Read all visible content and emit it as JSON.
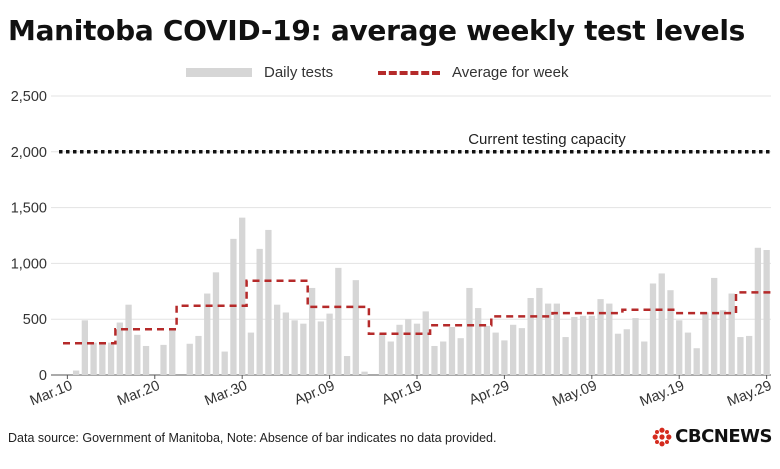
{
  "title": "Manitoba COVID-19: average weekly test levels",
  "legend": {
    "bars_label": "Daily tests",
    "line_label": "Average for week"
  },
  "footer": "Data source: Government of Manitoba,  Note: Absence of bar indicates no data provided.",
  "logo_text": "CBCNEWS",
  "colors": {
    "bar": "#d6d6d6",
    "avg_line": "#b52a2a",
    "capacity_line": "#111111",
    "grid": "#e3e3e3"
  },
  "chart_data": {
    "type": "bar",
    "title": "Manitoba COVID-19: average weekly test levels",
    "xlabel": "",
    "ylabel": "",
    "ylim": [
      0,
      2500
    ],
    "yticks": [
      0,
      500,
      1000,
      1500,
      2000,
      2500
    ],
    "ytick_labels": [
      "0",
      "500",
      "1,000",
      "1,500",
      "2,000",
      "2,500"
    ],
    "x_start": "2020-03-10",
    "x_end": "2020-05-29",
    "xtick_labels": [
      "Mar.10",
      "Mar.20",
      "Mar.30",
      "Apr.09",
      "Apr.19",
      "Apr.29",
      "May.09",
      "May.19",
      "May.29"
    ],
    "grid": true,
    "legend_position": "top",
    "series": [
      {
        "name": "Daily tests",
        "type": "bar",
        "dates": [
          "2020-03-10",
          "2020-03-11",
          "2020-03-12",
          "2020-03-13",
          "2020-03-14",
          "2020-03-15",
          "2020-03-16",
          "2020-03-17",
          "2020-03-18",
          "2020-03-19",
          "2020-03-20",
          "2020-03-21",
          "2020-03-22",
          "2020-03-23",
          "2020-03-24",
          "2020-03-25",
          "2020-03-26",
          "2020-03-27",
          "2020-03-28",
          "2020-03-29",
          "2020-03-30",
          "2020-03-31",
          "2020-04-01",
          "2020-04-02",
          "2020-04-03",
          "2020-04-04",
          "2020-04-05",
          "2020-04-06",
          "2020-04-07",
          "2020-04-08",
          "2020-04-09",
          "2020-04-10",
          "2020-04-11",
          "2020-04-12",
          "2020-04-13",
          "2020-04-14",
          "2020-04-15",
          "2020-04-16",
          "2020-04-17",
          "2020-04-18",
          "2020-04-19",
          "2020-04-20",
          "2020-04-21",
          "2020-04-22",
          "2020-04-23",
          "2020-04-24",
          "2020-04-25",
          "2020-04-26",
          "2020-04-27",
          "2020-04-28",
          "2020-04-29",
          "2020-04-30",
          "2020-05-01",
          "2020-05-02",
          "2020-05-03",
          "2020-05-04",
          "2020-05-05",
          "2020-05-06",
          "2020-05-07",
          "2020-05-08",
          "2020-05-09",
          "2020-05-10",
          "2020-05-11",
          "2020-05-12",
          "2020-05-13",
          "2020-05-14",
          "2020-05-15",
          "2020-05-16",
          "2020-05-17",
          "2020-05-18",
          "2020-05-19",
          "2020-05-20",
          "2020-05-21",
          "2020-05-22",
          "2020-05-23",
          "2020-05-24",
          "2020-05-25",
          "2020-05-26",
          "2020-05-27",
          "2020-05-28",
          "2020-05-29"
        ],
        "values": [
          null,
          40,
          490,
          290,
          290,
          290,
          470,
          630,
          360,
          260,
          null,
          270,
          420,
          null,
          280,
          350,
          730,
          920,
          210,
          1220,
          1410,
          380,
          1130,
          1300,
          630,
          560,
          490,
          460,
          780,
          480,
          550,
          960,
          170,
          850,
          30,
          null,
          370,
          300,
          450,
          500,
          460,
          570,
          260,
          300,
          430,
          330,
          780,
          600,
          440,
          380,
          310,
          450,
          420,
          690,
          780,
          640,
          640,
          340,
          520,
          530,
          530,
          680,
          640,
          370,
          410,
          510,
          300,
          820,
          910,
          760,
          490,
          380,
          240,
          560,
          870,
          580,
          730,
          340,
          350,
          1140,
          1120
        ]
      },
      {
        "name": "Average for week",
        "type": "step",
        "segments": [
          {
            "start": "2020-03-10",
            "end": "2020-03-16",
            "value": 285
          },
          {
            "start": "2020-03-16",
            "end": "2020-03-23",
            "value": 410
          },
          {
            "start": "2020-03-23",
            "end": "2020-03-31",
            "value": 620
          },
          {
            "start": "2020-03-31",
            "end": "2020-04-07",
            "value": 845
          },
          {
            "start": "2020-04-07",
            "end": "2020-04-14",
            "value": 610
          },
          {
            "start": "2020-04-14",
            "end": "2020-04-21",
            "value": 370
          },
          {
            "start": "2020-04-21",
            "end": "2020-04-28",
            "value": 445
          },
          {
            "start": "2020-04-28",
            "end": "2020-05-05",
            "value": 525
          },
          {
            "start": "2020-05-05",
            "end": "2020-05-13",
            "value": 555
          },
          {
            "start": "2020-05-13",
            "end": "2020-05-19",
            "value": 585
          },
          {
            "start": "2020-05-19",
            "end": "2020-05-26",
            "value": 555
          },
          {
            "start": "2020-05-26",
            "end": "2020-05-30",
            "value": 740
          }
        ]
      }
    ],
    "annotations": [
      {
        "label": "Current testing capacity",
        "value": 2000
      }
    ]
  }
}
